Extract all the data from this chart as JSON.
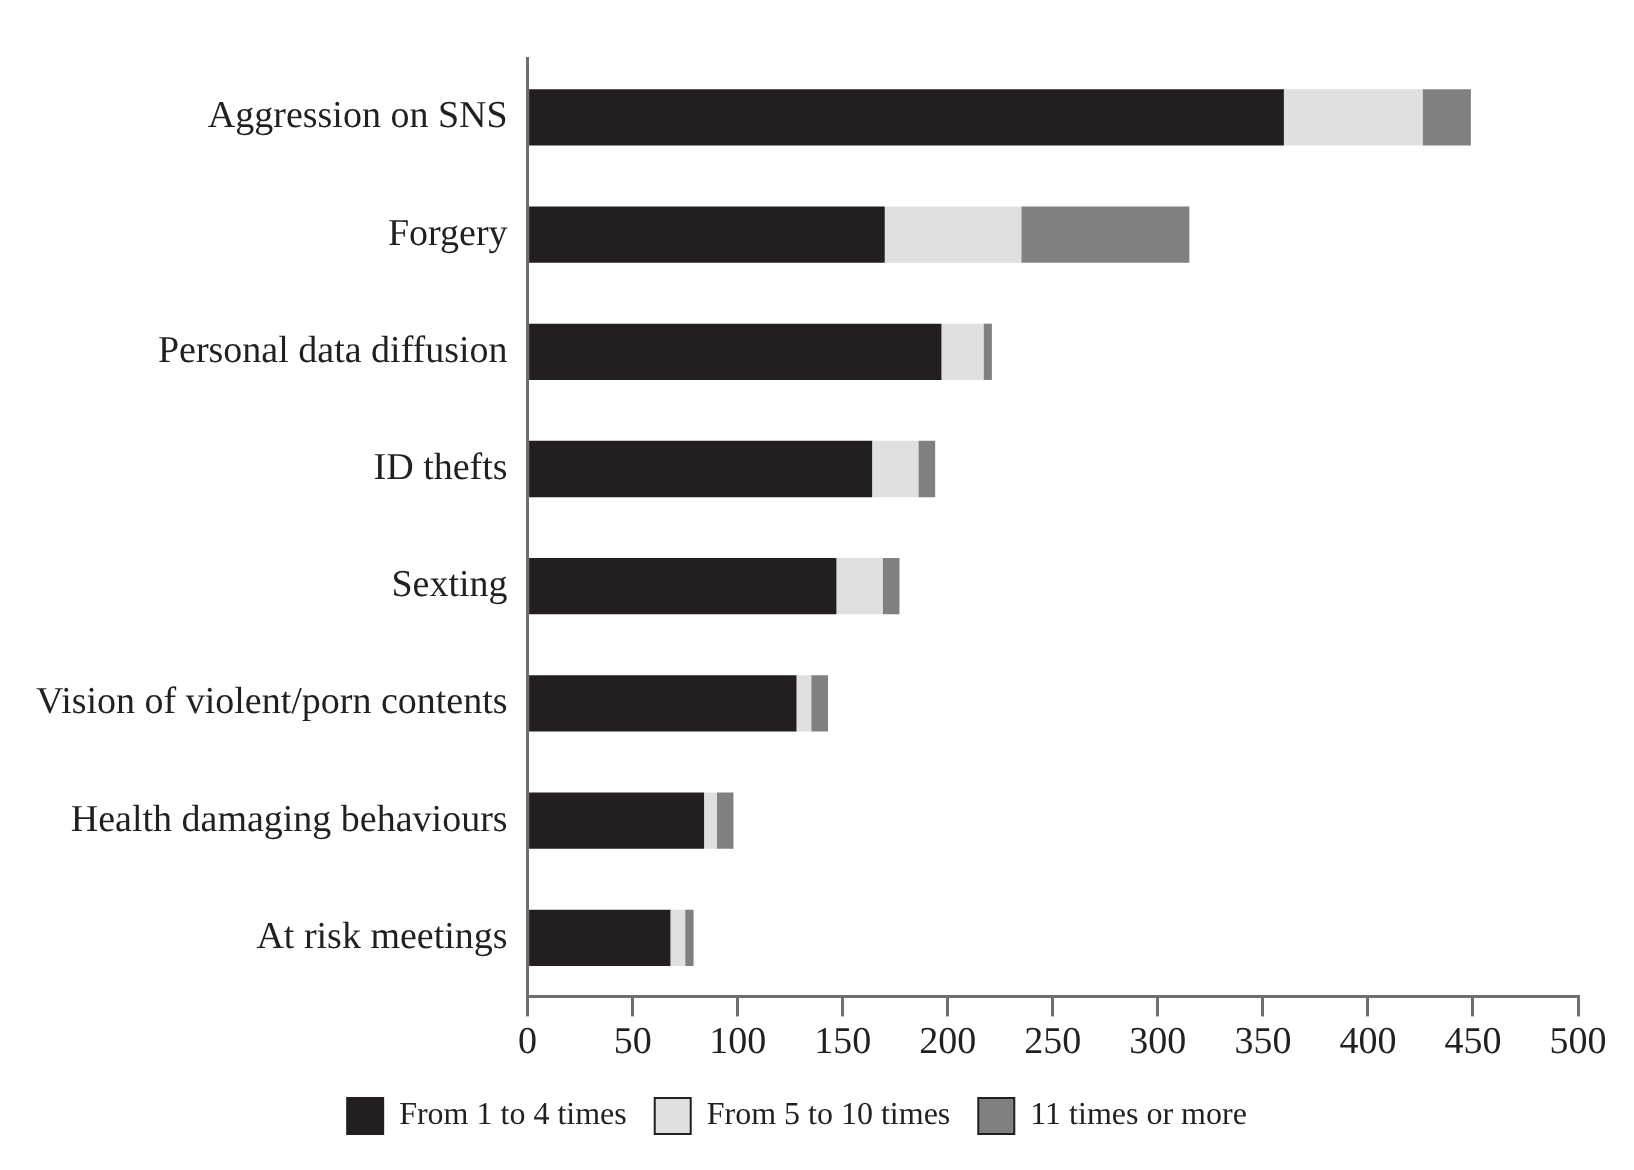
{
  "chart_data": {
    "type": "bar",
    "orientation": "horizontal",
    "stacked": true,
    "categories": [
      "Aggression on SNS",
      "Forgery",
      "Personal data diffusion",
      "ID thefts",
      "Sexting",
      "Vision of violent/porn contents",
      "Health damaging behaviours",
      "At risk meetings"
    ],
    "series": [
      {
        "name": "From 1 to 4 times",
        "color": "#231f20",
        "values": [
          360,
          170,
          197,
          164,
          147,
          128,
          84,
          68
        ]
      },
      {
        "name": "From 5 to 10 times",
        "color": "#e0e0e1",
        "values": [
          66,
          65,
          20,
          22,
          22,
          7,
          6,
          7
        ]
      },
      {
        "name": "11 times or more",
        "color": "#808083",
        "values": [
          23,
          80,
          4,
          8,
          8,
          8,
          8,
          4
        ]
      }
    ],
    "xlim": [
      0,
      500
    ],
    "xticks": [
      0,
      50,
      100,
      150,
      200,
      250,
      300,
      350,
      400,
      450,
      500
    ],
    "grid": false,
    "legend": "bottom"
  }
}
